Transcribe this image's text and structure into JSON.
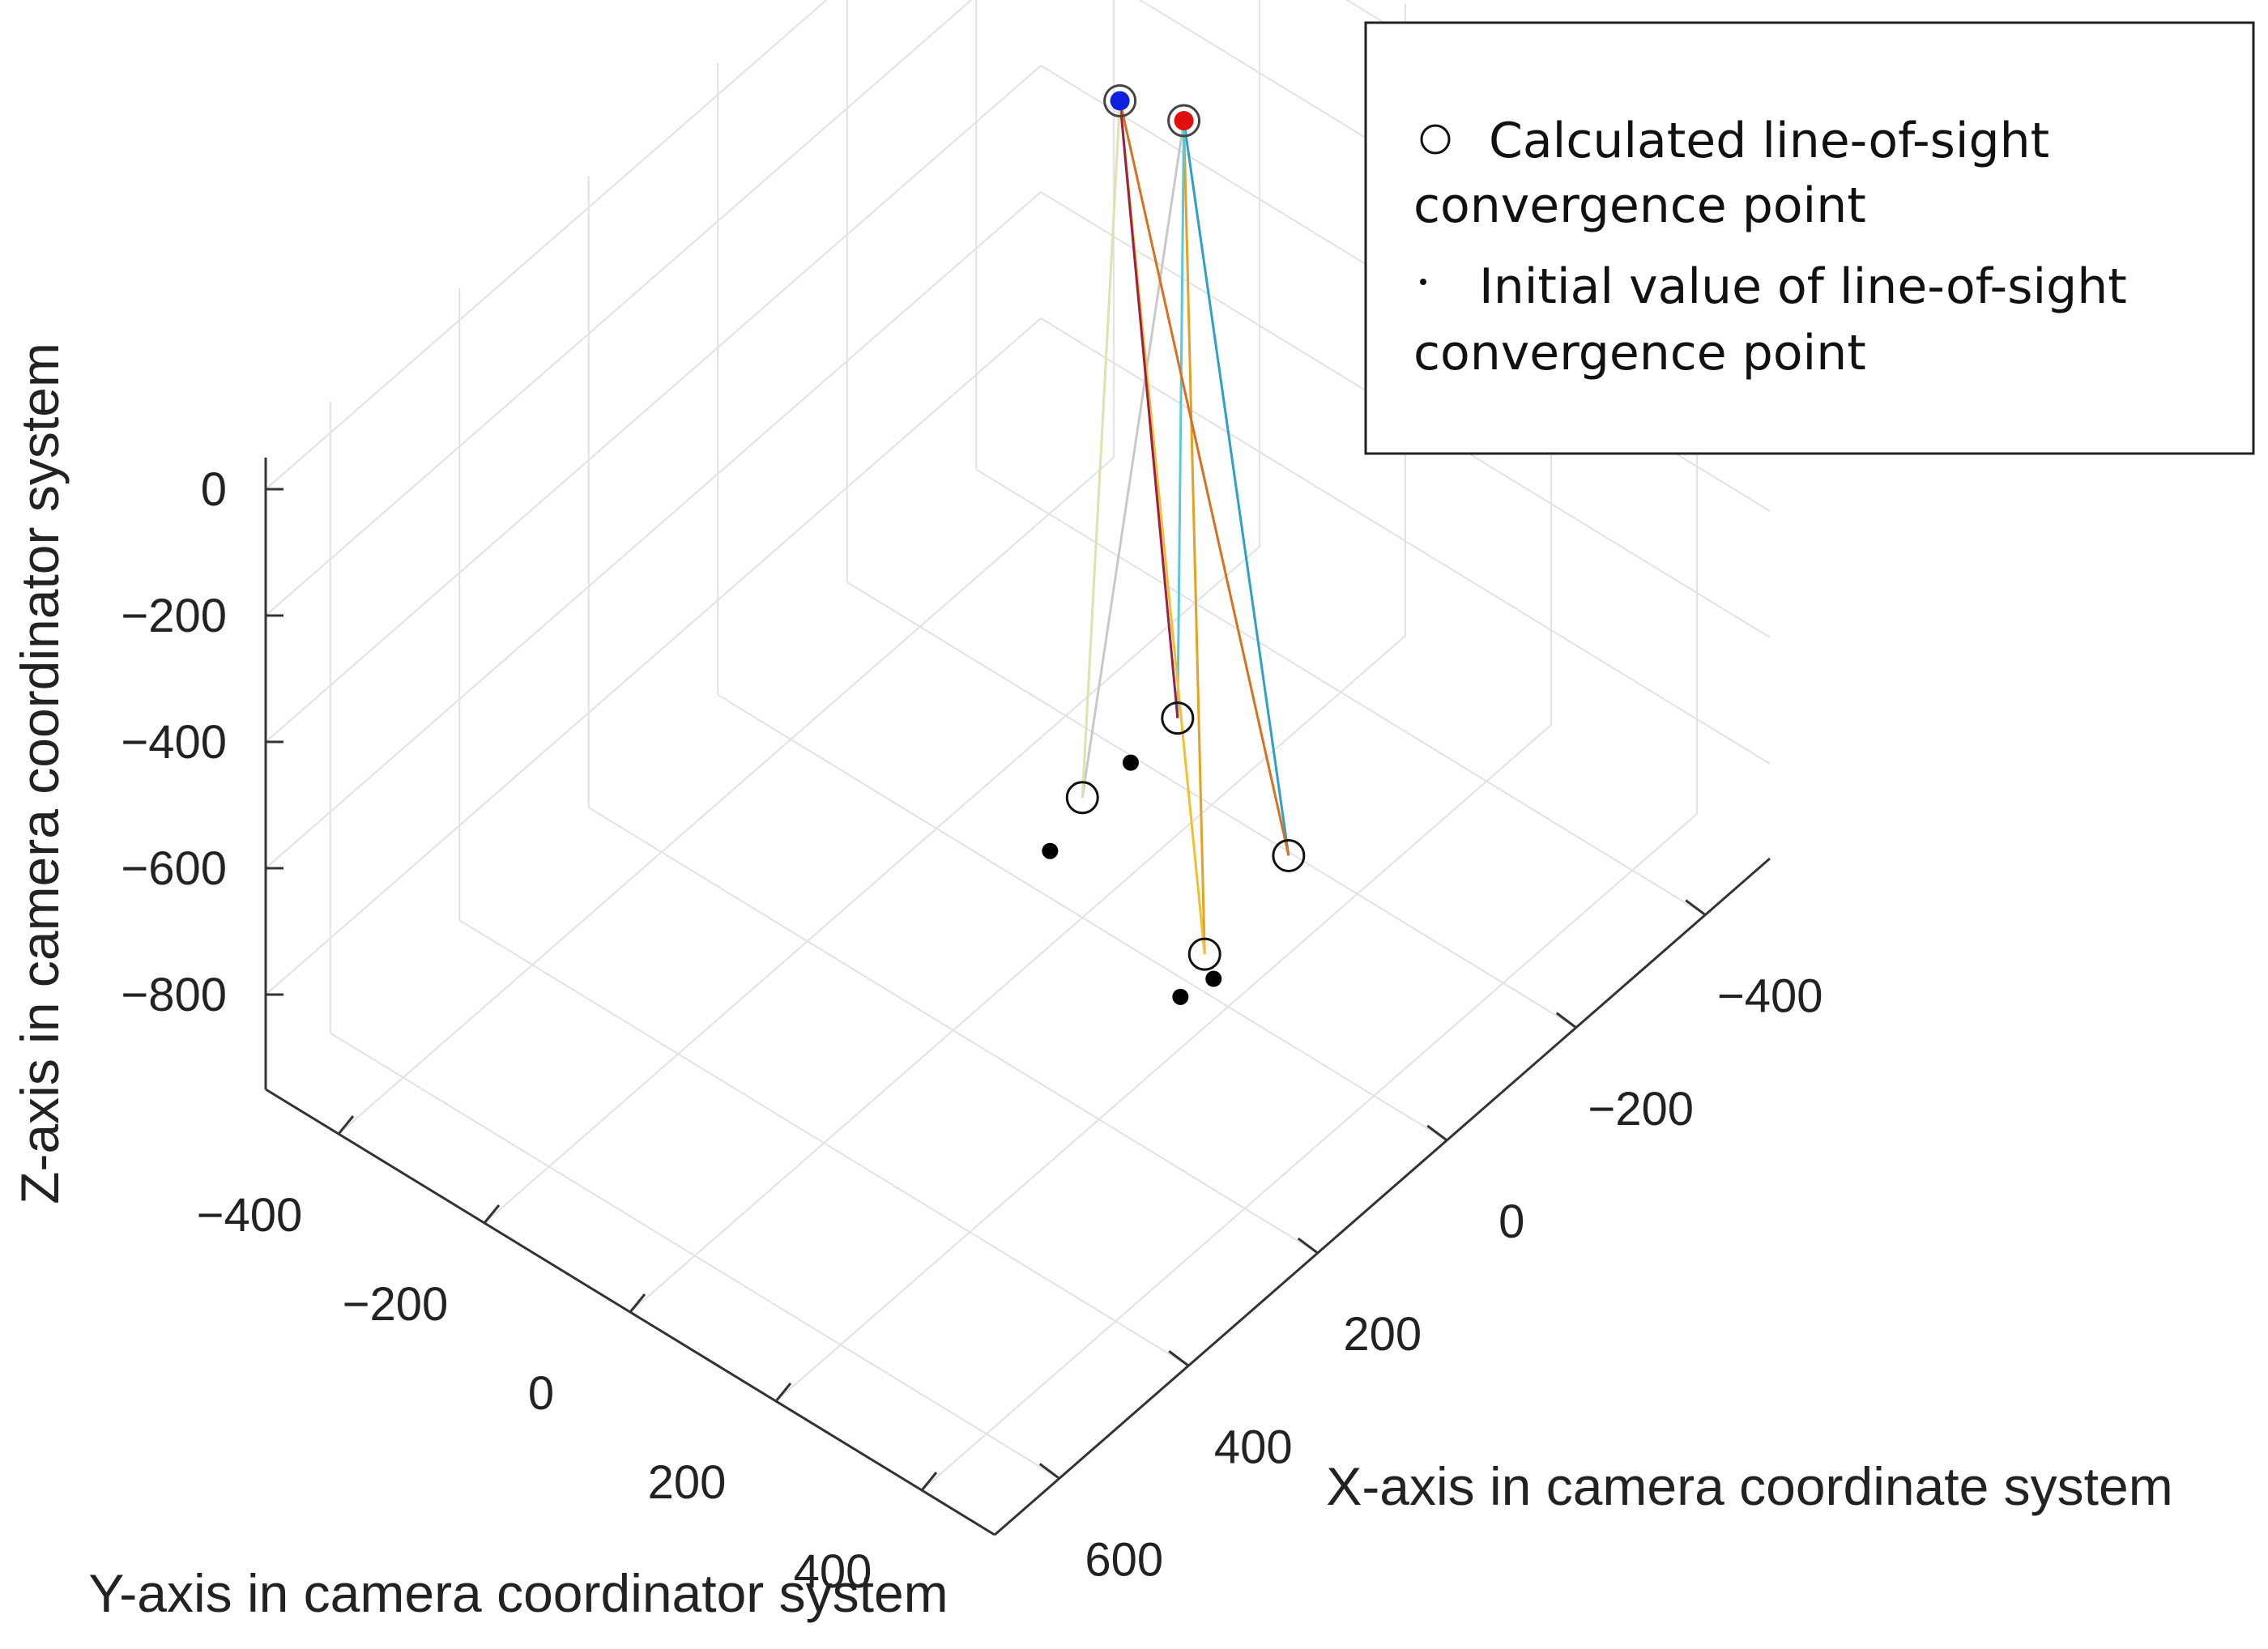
{
  "chart_data": {
    "type": "scatter3d",
    "title": "",
    "xlabel": "X-axis in camera coordinate system",
    "ylabel": "Y-axis in camera coordinator system",
    "zlabel": "Z-axis in camera coordinator system",
    "xlim": [
      -500,
      700
    ],
    "ylim": [
      -500,
      500
    ],
    "zlim": [
      -950,
      50
    ],
    "xticks": [
      -400,
      -200,
      0,
      200,
      400,
      600
    ],
    "xtick_labels": [
      "−400",
      "−200",
      "0",
      "200",
      "400",
      "600"
    ],
    "yticks": [
      -400,
      -200,
      0,
      200,
      400
    ],
    "ytick_labels": [
      "−400",
      "−200",
      "0",
      "200",
      "400"
    ],
    "zticks": [
      0,
      -200,
      -400,
      -600,
      -800
    ],
    "ztick_labels": [
      "0",
      "−200",
      "−400",
      "−600",
      "−800"
    ],
    "grid": true,
    "legend": {
      "position": "top-right",
      "entries": [
        {
          "marker": "open-circle",
          "line1": "Calculated line-of-sight",
          "line2": "convergence point"
        },
        {
          "marker": "dot",
          "line1": "Initial value of line-of-sight",
          "line2": "convergence point"
        }
      ]
    },
    "convergence_points": [
      {
        "name": "red",
        "x": -270,
        "y": -100,
        "z": 0,
        "color": "#e01010"
      },
      {
        "name": "blue",
        "x": -250,
        "y": -170,
        "z": 0,
        "color": "#1020e0"
      }
    ],
    "calculated_points": [
      {
        "x": 0,
        "y": 0,
        "z": -760
      },
      {
        "x": -150,
        "y": 150,
        "z": -880
      },
      {
        "x": -20,
        "y": 150,
        "z": -920
      },
      {
        "x": -170,
        "y": -20,
        "z": -800
      }
    ],
    "initial_points": [
      {
        "x": 50,
        "y": 0,
        "z": -800
      },
      {
        "x": 0,
        "y": 180,
        "z": -920
      },
      {
        "x": 40,
        "y": 170,
        "z": -920
      },
      {
        "x": -120,
        "y": -40,
        "z": -840
      }
    ],
    "sight_lines": [
      {
        "from": "red",
        "to": 0,
        "color": "#c8c8c8"
      },
      {
        "from": "red",
        "to": 1,
        "color": "#2ca0c8"
      },
      {
        "from": "red",
        "to": 2,
        "color": "#e8a020"
      },
      {
        "from": "red",
        "to": 3,
        "color": "#5bc8d8"
      },
      {
        "from": "blue",
        "to": 1,
        "color": "#d87020"
      },
      {
        "from": "blue",
        "to": 2,
        "color": "#f0c030"
      },
      {
        "from": "blue",
        "to": 3,
        "color": "#9a2048"
      },
      {
        "from": "blue",
        "to": 0,
        "color": "#e0e0b0"
      }
    ]
  }
}
